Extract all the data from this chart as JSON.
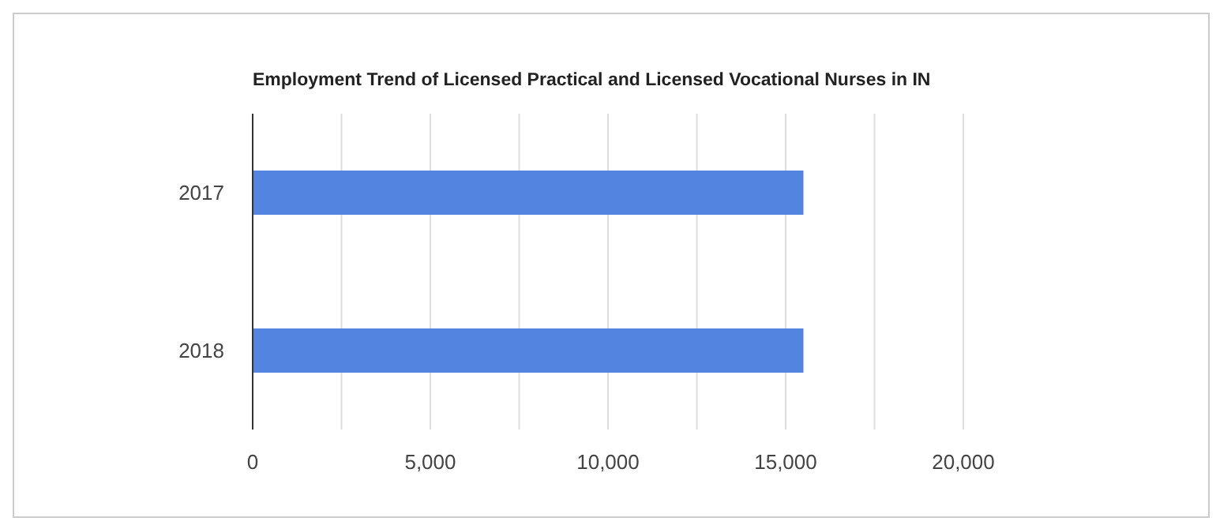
{
  "chart_data": {
    "type": "bar",
    "orientation": "horizontal",
    "title": "Employment Trend of Licensed Practical and Licensed Vocational Nurses in IN",
    "categories": [
      "2017",
      "2018"
    ],
    "values": [
      15500,
      15500
    ],
    "color": "#5284e0",
    "xlim": [
      0,
      20000
    ],
    "xticks": [
      0,
      {
        "value": 2500,
        "label": null
      },
      {
        "value": 5000,
        "label": "5,000"
      },
      {
        "value": 7500,
        "label": null
      },
      {
        "value": 10000,
        "label": "10,000"
      },
      {
        "value": 12500,
        "label": null
      },
      {
        "value": 15000,
        "label": "15,000"
      },
      {
        "value": 17500,
        "label": null
      },
      {
        "value": 20000,
        "label": "20,000"
      }
    ],
    "grid": "x"
  }
}
